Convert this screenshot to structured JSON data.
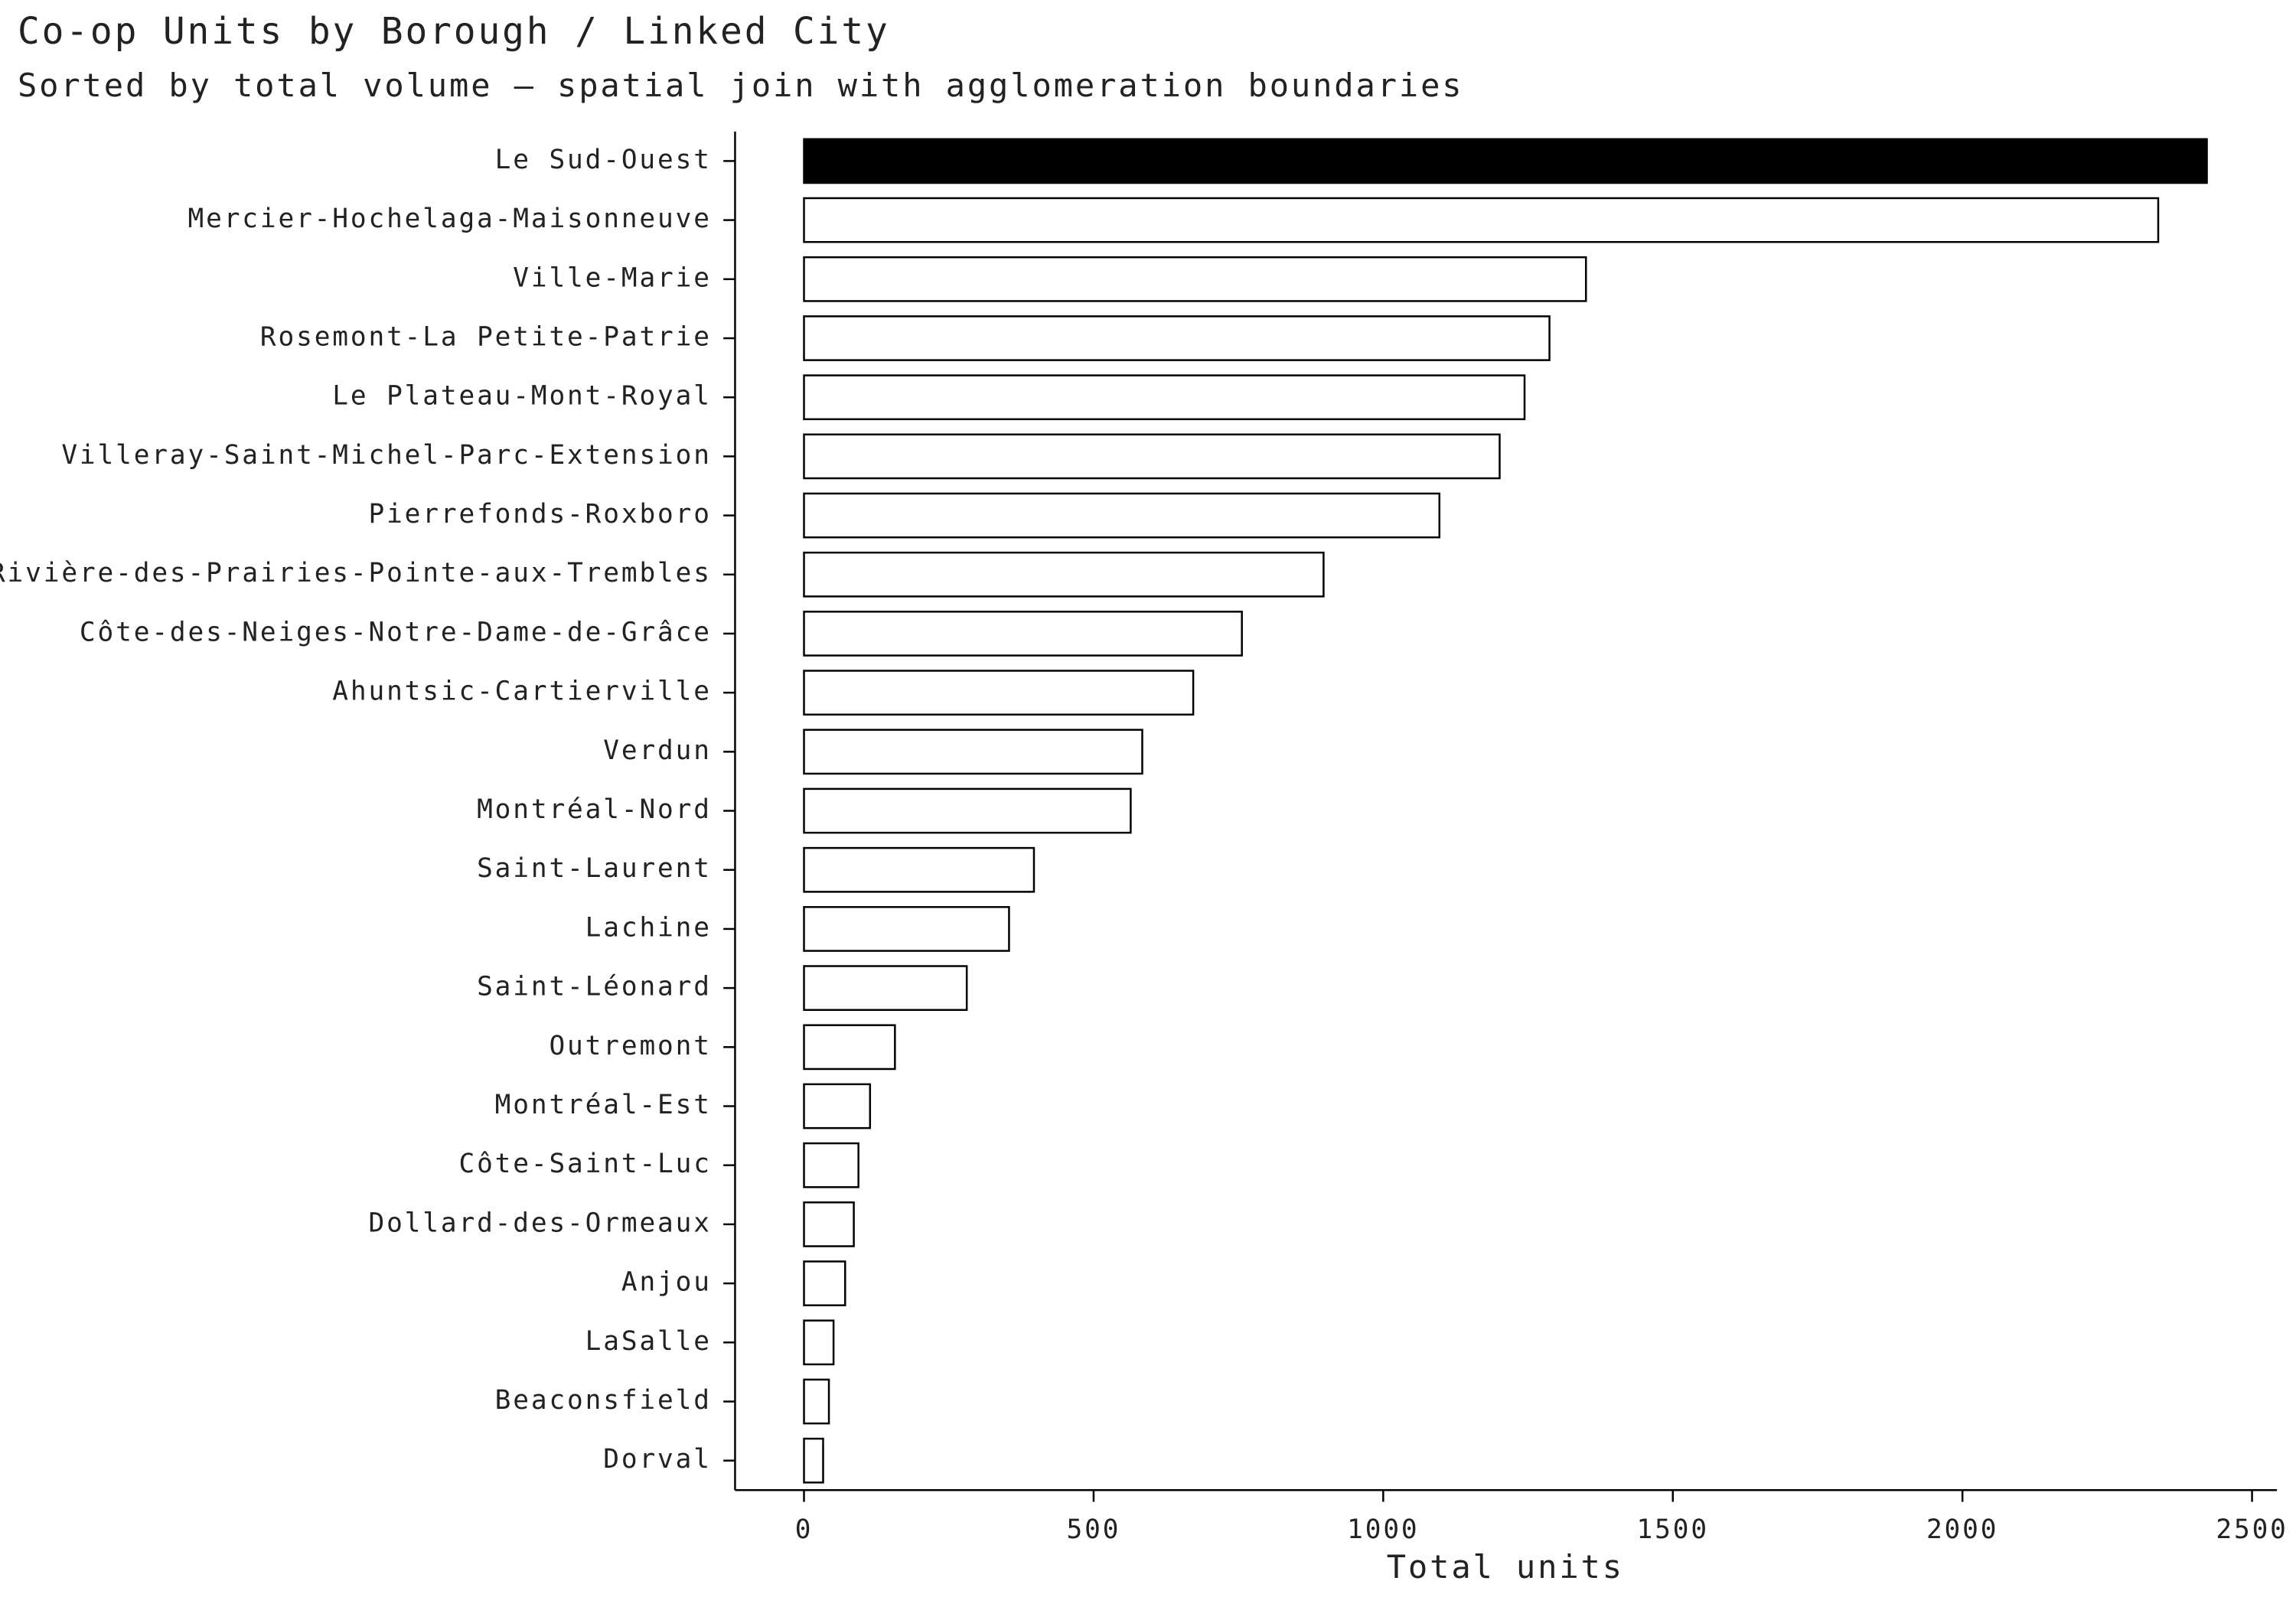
{
  "chart_data": {
    "type": "barh",
    "title": "Co-op Units by Borough / Linked City",
    "subtitle": "Sorted by total volume — spatial join with agglomeration boundaries",
    "x_label": "Total units",
    "categories": [
      "Le Sud-Ouest",
      "Mercier-Hochelaga-Maisonneuve",
      "Ville-Marie",
      "Rosemont-La Petite-Patrie",
      "Le Plateau-Mont-Royal",
      "Villeray-Saint-Michel-Parc-Extension",
      "Pierrefonds-Roxboro",
      "Rivière-des-Prairies-Pointe-aux-Trembles",
      "Côte-des-Neiges-Notre-Dame-de-Grâce",
      "Ahuntsic-Cartierville",
      "Verdun",
      "Montréal-Nord",
      "Saint-Laurent",
      "Lachine",
      "Saint-Léonard",
      "Outremont",
      "Montréal-Est",
      "Côte-Saint-Luc",
      "Dollard-des-Ormeaux",
      "Anjou",
      "LaSalle",
      "Beaconsfield",
      "Dorval"
    ],
    "values": [
      2422,
      2338,
      1350,
      1287,
      1244,
      1201,
      1097,
      897,
      756,
      672,
      584,
      564,
      397,
      354,
      281,
      157,
      114,
      94,
      86,
      71,
      51,
      43,
      33
    ],
    "colors": [
      "#000000",
      "#ffffff",
      "#ffffff",
      "#ffffff",
      "#ffffff",
      "#ffffff",
      "#ffffff",
      "#ffffff",
      "#ffffff",
      "#ffffff",
      "#ffffff",
      "#ffffff",
      "#ffffff",
      "#ffffff",
      "#ffffff",
      "#ffffff",
      "#ffffff",
      "#ffffff",
      "#ffffff",
      "#ffffff",
      "#ffffff",
      "#ffffff",
      "#ffffff"
    ],
    "edge_color": "#000000",
    "xlim": [
      -119,
      2543
    ],
    "xticks": [
      0,
      500,
      1000,
      1500,
      2000,
      2500
    ],
    "grid": false
  }
}
